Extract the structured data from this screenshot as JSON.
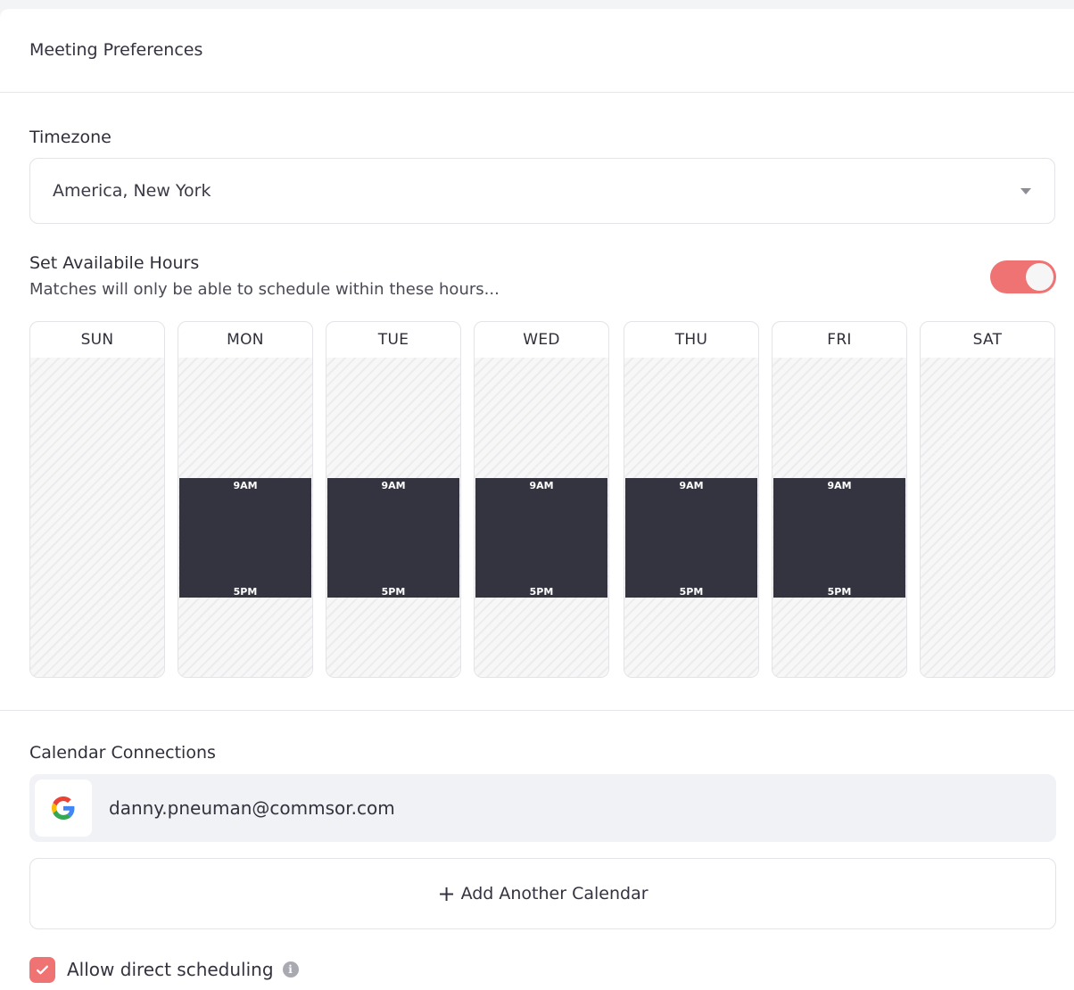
{
  "header": {
    "title": "Meeting Preferences"
  },
  "timezone": {
    "label": "Timezone",
    "value": "America, New York"
  },
  "availability": {
    "title": "Set Availabile Hours",
    "subtitle": "Matches will only be able to schedule within these hours...",
    "enabled": true,
    "days": [
      {
        "name": "SUN",
        "available": false,
        "start": "",
        "end": ""
      },
      {
        "name": "MON",
        "available": true,
        "start": "9AM",
        "end": "5PM"
      },
      {
        "name": "TUE",
        "available": true,
        "start": "9AM",
        "end": "5PM"
      },
      {
        "name": "WED",
        "available": true,
        "start": "9AM",
        "end": "5PM"
      },
      {
        "name": "THU",
        "available": true,
        "start": "9AM",
        "end": "5PM"
      },
      {
        "name": "FRI",
        "available": true,
        "start": "9AM",
        "end": "5PM"
      },
      {
        "name": "SAT",
        "available": false,
        "start": "",
        "end": ""
      }
    ]
  },
  "calendar": {
    "title": "Calendar Connections",
    "connections": [
      {
        "provider": "google",
        "email": "danny.pneuman@commsor.com"
      }
    ],
    "add_label": "Add Another Calendar"
  },
  "direct_scheduling": {
    "label": "Allow direct scheduling",
    "checked": true
  },
  "colors": {
    "accent": "#ef7373",
    "available_block": "#343441"
  }
}
